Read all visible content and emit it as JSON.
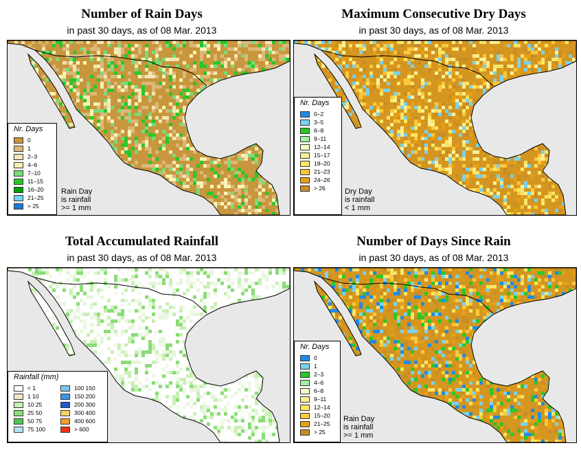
{
  "panels": [
    {
      "title": "Number of Rain Days",
      "subtitle": "in past 30 days, as of  08 Mar. 2013",
      "legend_title": "Nr. Days",
      "legend": [
        {
          "label": "0",
          "color": "#c8963c"
        },
        {
          "label": "1",
          "color": "#dcb878"
        },
        {
          "label": "2–3",
          "color": "#f5e6b4"
        },
        {
          "label": "4–6",
          "color": "#faf5b4"
        },
        {
          "label": "7–10",
          "color": "#78dc78"
        },
        {
          "label": "11–15",
          "color": "#28c828"
        },
        {
          "label": "16–20",
          "color": "#00a000"
        },
        {
          "label": "21–25",
          "color": "#78d2f0"
        },
        {
          "label": "> 25",
          "color": "#1e78dc"
        }
      ],
      "note": [
        "Rain Day",
        "is rainfall",
        ">= 1 mm"
      ],
      "land_color": "#c8963c",
      "speckle": [
        "#dcb878",
        "#dcb878",
        "#f5e6b4",
        "#faf5b4",
        "#78dc78",
        "#28c828"
      ]
    },
    {
      "title": "Maximum Consecutive Dry Days",
      "subtitle": "in past 30 days, as of  08 Mar. 2013",
      "legend_title": "Nr. Days",
      "legend": [
        {
          "label": "0–2",
          "color": "#1e8ce6"
        },
        {
          "label": "3–5",
          "color": "#78d2f0"
        },
        {
          "label": "6–8",
          "color": "#28c828"
        },
        {
          "label": "9–11",
          "color": "#a0f0a0"
        },
        {
          "label": "12–14",
          "color": "#fafac8"
        },
        {
          "label": "15–17",
          "color": "#faf096"
        },
        {
          "label": "18–20",
          "color": "#fae664"
        },
        {
          "label": "21–23",
          "color": "#fac83c"
        },
        {
          "label": "24–26",
          "color": "#e6a014"
        },
        {
          "label": "> 26",
          "color": "#c88c28"
        }
      ],
      "note": [
        "Dry Day",
        "is rainfall",
        "< 1 mm"
      ],
      "land_color": "#d49620",
      "speckle": [
        "#e6a014",
        "#fac83c",
        "#fae664",
        "#faf096",
        "#78d2f0",
        "#c88c28"
      ]
    },
    {
      "title": "Total Accumulated Rainfall",
      "subtitle": "in past 30 days, as of  08 Mar. 2013",
      "legend_title": "Rainfall (mm)",
      "legend": [
        {
          "label": "< 1",
          "color": "#ffffff"
        },
        {
          "label": "1   10",
          "color": "#f5e6c8"
        },
        {
          "label": "10   25",
          "color": "#c8f0b4"
        },
        {
          "label": "25   50",
          "color": "#8cdc78"
        },
        {
          "label": "50   75",
          "color": "#50c850"
        },
        {
          "label": "75   100",
          "color": "#b4e6f5"
        },
        {
          "label": "100   150",
          "color": "#78c8f0"
        },
        {
          "label": "150   200",
          "color": "#3c96e6"
        },
        {
          "label": "200   300",
          "color": "#1e5ad2"
        },
        {
          "label": "300   400",
          "color": "#fad264"
        },
        {
          "label": "400   600",
          "color": "#f5a028"
        },
        {
          "label": "> 600",
          "color": "#f03214"
        }
      ],
      "note": [],
      "land_color": "#ffffff",
      "speckle": [
        "#ffffff",
        "#f0f8e6",
        "#c8f0b4",
        "#e6f5dc",
        "#8cdc78"
      ]
    },
    {
      "title": "Number of Days Since Rain",
      "subtitle": "in past 30 days, as of  08 Mar. 2013",
      "legend_title": "Nr. Days",
      "legend": [
        {
          "label": "0",
          "color": "#1e8ce6"
        },
        {
          "label": "1",
          "color": "#78d2f0"
        },
        {
          "label": "2–3",
          "color": "#28c828"
        },
        {
          "label": "4–6",
          "color": "#a0f0a0"
        },
        {
          "label": "6–8",
          "color": "#fafac8"
        },
        {
          "label": "9–11",
          "color": "#faf096"
        },
        {
          "label": "12–14",
          "color": "#fae664"
        },
        {
          "label": "15–20",
          "color": "#fac83c"
        },
        {
          "label": "21–25",
          "color": "#e6a014"
        },
        {
          "label": "> 25",
          "color": "#c88c28"
        }
      ],
      "note": [
        "Rain Day",
        "is rainfall",
        ">= 1 mm"
      ],
      "land_color": "#d49620",
      "speckle": [
        "#e6a014",
        "#fac83c",
        "#1e8ce6",
        "#78d2f0",
        "#fae664",
        "#28c828",
        "#c88c28"
      ]
    }
  ]
}
